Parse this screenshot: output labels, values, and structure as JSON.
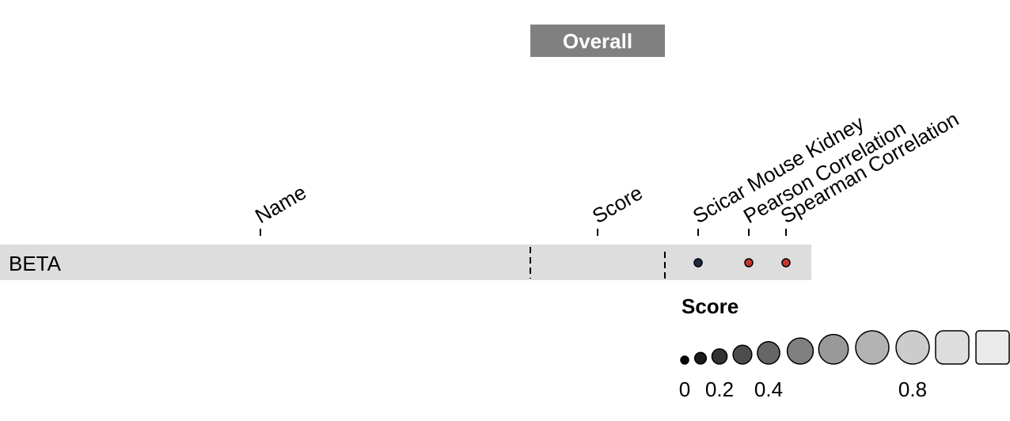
{
  "header": {
    "group_label": "Overall",
    "group_color": "#808080"
  },
  "columns": [
    {
      "id": "name",
      "label": "Name"
    },
    {
      "id": "score",
      "label": "Score"
    },
    {
      "id": "scicar",
      "label": "Scicar Mouse Kidney"
    },
    {
      "id": "pearson",
      "label": "Pearson Correlation"
    },
    {
      "id": "spearman",
      "label": "Spearman Correlation"
    }
  ],
  "rows": [
    {
      "name": "BETA",
      "row_color": "#dddddd"
    }
  ],
  "legend": {
    "title": "Score",
    "ticks": [
      "0",
      "0.2",
      "0.4",
      "0.8"
    ]
  },
  "chart_data": {
    "type": "table",
    "title": "",
    "group": "Overall",
    "columns": [
      "Name",
      "Score",
      "Scicar Mouse Kidney",
      "Pearson Correlation",
      "Spearman Correlation"
    ],
    "rows": [
      {
        "name": "BETA",
        "values": [
          {
            "column": "Scicar Mouse Kidney",
            "value": 0.0,
            "color": "#1f2a44"
          },
          {
            "column": "Pearson Correlation",
            "value": 0.0,
            "color": "#c0392b"
          },
          {
            "column": "Spearman Correlation",
            "value": 0.0,
            "color": "#c0392b"
          }
        ]
      }
    ],
    "legend": {
      "title": "Score",
      "values": [
        0,
        0.1,
        0.2,
        0.3,
        0.4,
        0.5,
        0.6,
        0.7,
        0.8,
        0.9,
        1.0
      ],
      "tick_labels": [
        "0",
        "0.2",
        "0.4",
        "0.8"
      ],
      "placement": "bottom-right"
    }
  }
}
